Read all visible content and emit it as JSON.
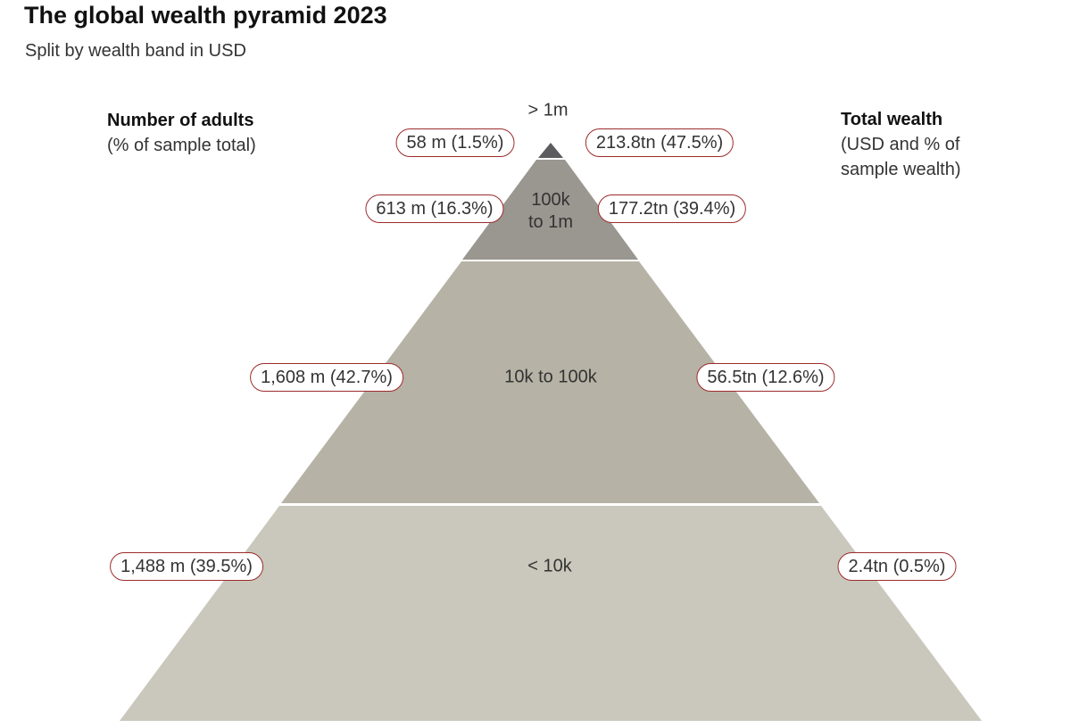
{
  "header": {
    "title": "The global wealth pyramid 2023",
    "subtitle": "Split by wealth band in USD"
  },
  "left_column": {
    "heading": "Number of adults",
    "subheading": "(% of sample total)"
  },
  "right_column": {
    "heading": "Total wealth",
    "subheading_line1": "(USD and % of",
    "subheading_line2": "sample wealth)"
  },
  "bands": [
    {
      "label_line1": "> 1m",
      "label_line2": "",
      "adults_label": "58 m (1.5%)",
      "wealth_label": "213.8tn (47.5%)",
      "color": "#5c5b5d"
    },
    {
      "label_line1": "100k",
      "label_line2": "to 1m",
      "adults_label": "613 m (16.3%)",
      "wealth_label": "177.2tn (39.4%)",
      "color": "#9a9690"
    },
    {
      "label_line1": "10k to 100k",
      "label_line2": "",
      "adults_label": "1,608 m (42.7%)",
      "wealth_label": "56.5tn (12.6%)",
      "color": "#b6b2a5"
    },
    {
      "label_line1": "< 10k",
      "label_line2": "",
      "adults_label": "1,488 m (39.5%)",
      "wealth_label": "2.4tn (0.5%)",
      "color": "#cac8bc"
    }
  ],
  "colors": {
    "pill_border": "#9c2b2b",
    "divider": "#ffffff"
  }
}
